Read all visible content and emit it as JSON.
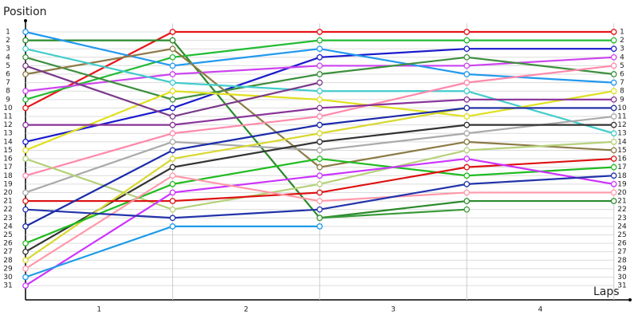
{
  "chart_data": {
    "type": "line",
    "y_title": "Position",
    "x_title": "Laps",
    "categories": [
      "1",
      "2",
      "3",
      "4"
    ],
    "x": [
      0,
      1,
      2,
      3,
      4
    ],
    "xlim": [
      0,
      4.11
    ],
    "ylim": [
      32.5,
      0
    ],
    "yticks": [
      1,
      2,
      3,
      4,
      5,
      6,
      7,
      8,
      9,
      10,
      11,
      12,
      13,
      14,
      15,
      16,
      17,
      18,
      19,
      20,
      21,
      22,
      23,
      24,
      25,
      26,
      27,
      28,
      29,
      30,
      31
    ],
    "grid": true,
    "series": [
      {
        "color": "#e8141a",
        "values": [
          10,
          1,
          1,
          1,
          1
        ]
      },
      {
        "color": "#2a8a2a",
        "values": [
          2,
          2,
          23,
          21,
          21
        ]
      },
      {
        "color": "#22bb33",
        "values": [
          9,
          4,
          2,
          2,
          2
        ]
      },
      {
        "color": "#1a1acc",
        "values": [
          14,
          10,
          4,
          3,
          3
        ]
      },
      {
        "color": "#cc44ee",
        "values": [
          8,
          6,
          5,
          5,
          4
        ]
      },
      {
        "color": "#2299ee",
        "values": [
          1,
          5,
          3,
          6,
          7
        ]
      },
      {
        "color": "#3d8f3d",
        "values": [
          4,
          9,
          6,
          4,
          6
        ]
      },
      {
        "color": "#8b7a45",
        "values": [
          6,
          3,
          17,
          14,
          15
        ]
      },
      {
        "color": "#44cccc",
        "values": [
          3,
          7,
          8,
          8,
          13
        ]
      },
      {
        "color": "#e0e020",
        "values": [
          15,
          8,
          9,
          11,
          8
        ]
      },
      {
        "color": "#ff88aa",
        "values": [
          18,
          13,
          11,
          7,
          5
        ]
      },
      {
        "color": "#883399",
        "values": [
          12,
          12,
          10,
          9,
          9
        ]
      },
      {
        "color": "#7a3a8a",
        "values": [
          5,
          11,
          7,
          null,
          null
        ]
      },
      {
        "color": "#aaaaaa",
        "values": [
          20,
          14,
          15,
          13,
          11
        ]
      },
      {
        "color": "#333333",
        "values": [
          27,
          17,
          14,
          12,
          12
        ]
      },
      {
        "color": "#b5d17a",
        "values": [
          16,
          22,
          19,
          15,
          14
        ]
      },
      {
        "color": "#d8d830",
        "values": [
          28,
          16,
          13,
          10,
          10
        ]
      },
      {
        "color": "#22bb22",
        "values": [
          26,
          19,
          16,
          18,
          17
        ]
      },
      {
        "color": "#dd1111",
        "values": [
          21,
          21,
          20,
          17,
          16
        ]
      },
      {
        "color": "#cc33ff",
        "values": [
          31,
          20,
          18,
          16,
          19
        ]
      },
      {
        "color": "#ff99aa",
        "values": [
          29,
          18,
          21,
          20,
          20
        ]
      },
      {
        "color": "#1a2aa8",
        "values": [
          24,
          15,
          12,
          10,
          10
        ]
      },
      {
        "color": "#2233aa",
        "values": [
          22,
          23,
          22,
          19,
          18
        ]
      },
      {
        "color": "#1e9be8",
        "values": [
          30,
          24,
          24,
          null,
          null
        ]
      },
      {
        "color": "#3a9a3a",
        "values": [
          null,
          null,
          23,
          22,
          null
        ]
      }
    ]
  }
}
